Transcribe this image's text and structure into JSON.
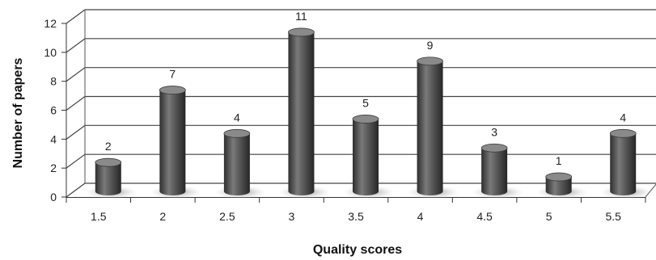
{
  "chart_data": {
    "type": "bar",
    "style": "3d-cylinder",
    "categories": [
      "1.5",
      "2",
      "2.5",
      "3",
      "3.5",
      "4",
      "4.5",
      "5",
      "5.5"
    ],
    "values": [
      2,
      7,
      4,
      11,
      5,
      9,
      3,
      1,
      4
    ],
    "data_labels": [
      "2",
      "7",
      "4",
      "11",
      "5",
      "9",
      "3",
      "1",
      "4"
    ],
    "xlabel": "Quality scores",
    "ylabel": "Number of papers",
    "ylim": [
      0,
      12
    ],
    "yticks": [
      0,
      2,
      4,
      6,
      8,
      10,
      12
    ],
    "ytick_labels": [
      "0",
      "2",
      "4",
      "6",
      "8",
      "10",
      "12"
    ],
    "grid": true,
    "legend": "none",
    "colors": {
      "bar": "#555555",
      "bar_dark": "#2e2e2e",
      "bar_light": "#8a8a8a",
      "grid": "#444444",
      "floor_shadow": "#9a9a9a"
    }
  }
}
